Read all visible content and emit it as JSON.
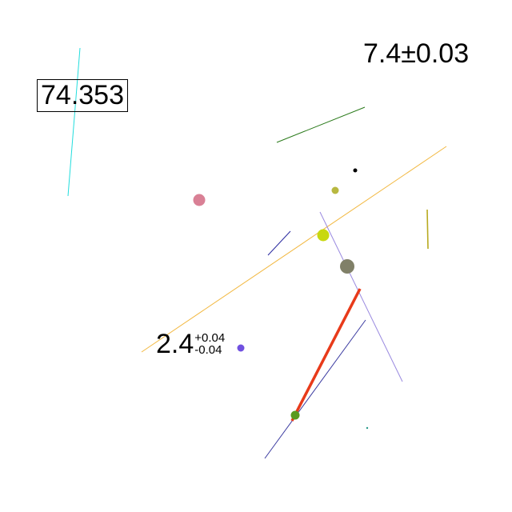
{
  "labels": {
    "boxed_value": "74.353",
    "top_right_value": "7.4±0.03",
    "asym_value": {
      "main": "2.4",
      "plus": "+0.04",
      "minus": "-0.04"
    }
  },
  "colors": {
    "cyan_line": "#22dddd",
    "green_line": "#2a7a1a",
    "orange_line": "#f2b840",
    "olive_line": "#b8aa20",
    "navy_line": "#2a2aa0",
    "lavender_line": "#9a8ae0",
    "red_line": "#e83a1a",
    "blue_line": "#3a3aa0",
    "pink_dot": "#d98095",
    "lime_dot": "#c8d810",
    "olive_dot": "#b8b840",
    "gray_dot": "#808068",
    "black_dot": "#000000",
    "purple_dot": "#7050e0",
    "green_dot": "#5a9a20",
    "teal_dot": "#2a9a8a"
  }
}
